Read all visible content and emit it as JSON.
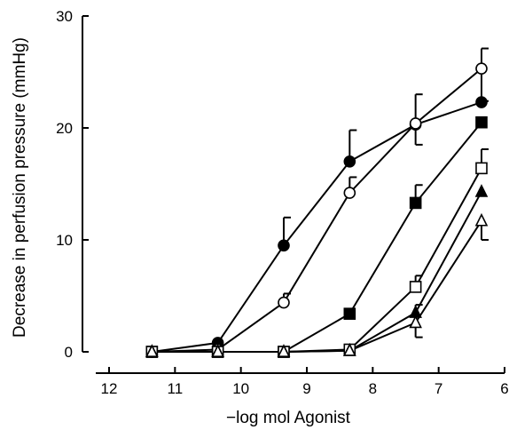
{
  "chart_data": {
    "type": "line",
    "xlabel": "−log mol Agonist",
    "ylabel": "Decrease in perfusion pressure (mmHg)",
    "xlim": [
      12,
      6
    ],
    "ylim": [
      0,
      30
    ],
    "x_ticks": [
      12,
      11,
      10,
      9,
      8,
      7,
      6
    ],
    "x_tick_labels": [
      "12",
      "11",
      "10",
      "9",
      "8",
      "7",
      "6"
    ],
    "y_ticks": [
      0,
      10,
      20,
      30
    ],
    "y_tick_labels": [
      "0",
      "10",
      "20",
      "30"
    ],
    "grid": false,
    "series": [
      {
        "marker": "filled-circle",
        "x": [
          11.35,
          10.35,
          9.35,
          8.35,
          7.35,
          6.35
        ],
        "y": [
          0,
          0.8,
          9.5,
          17,
          20.3,
          22.3
        ],
        "err_plus": [
          0,
          0,
          2.5,
          2.8,
          2.7,
          0
        ],
        "err_minus": [
          0,
          0,
          0,
          0,
          0,
          0
        ]
      },
      {
        "marker": "open-circle",
        "x": [
          11.35,
          10.35,
          9.35,
          8.35,
          7.35,
          6.35
        ],
        "y": [
          0,
          0.2,
          4.4,
          14.2,
          20.4,
          25.3
        ],
        "err_plus": [
          0,
          0,
          0.8,
          1.4,
          0,
          1.8
        ],
        "err_minus": [
          0,
          0,
          0,
          0,
          1.9,
          2.9
        ]
      },
      {
        "marker": "filled-square",
        "x": [
          11.35,
          10.35,
          9.35,
          8.35,
          7.35,
          6.35
        ],
        "y": [
          0,
          0,
          0,
          3.4,
          13.3,
          20.5
        ],
        "err_plus": [
          0,
          0,
          0,
          0,
          1.6,
          0
        ],
        "err_minus": [
          0,
          0,
          0,
          0,
          0,
          0
        ]
      },
      {
        "marker": "open-square",
        "x": [
          11.35,
          10.35,
          9.35,
          8.35,
          7.35,
          6.35
        ],
        "y": [
          0,
          0,
          0,
          0.2,
          5.8,
          16.4
        ],
        "err_plus": [
          0,
          0,
          0,
          0,
          1.0,
          1.7
        ],
        "err_minus": [
          0,
          0,
          0,
          0,
          0,
          0
        ]
      },
      {
        "marker": "filled-triangle",
        "x": [
          11.35,
          10.35,
          9.35,
          8.35,
          7.35,
          6.35
        ],
        "y": [
          0,
          0,
          0,
          0.1,
          3.5,
          14.3
        ],
        "err_plus": [
          0,
          0,
          0,
          0,
          0.7,
          0
        ],
        "err_minus": [
          0,
          0,
          0,
          0,
          0,
          0
        ]
      },
      {
        "marker": "open-triangle",
        "x": [
          11.35,
          10.35,
          9.35,
          8.35,
          7.35,
          6.35
        ],
        "y": [
          0,
          0,
          0,
          0.1,
          2.6,
          11.7
        ],
        "err_plus": [
          0,
          0,
          0,
          0,
          0,
          0
        ],
        "err_minus": [
          0,
          0,
          0,
          0,
          1.3,
          1.7
        ]
      }
    ]
  }
}
